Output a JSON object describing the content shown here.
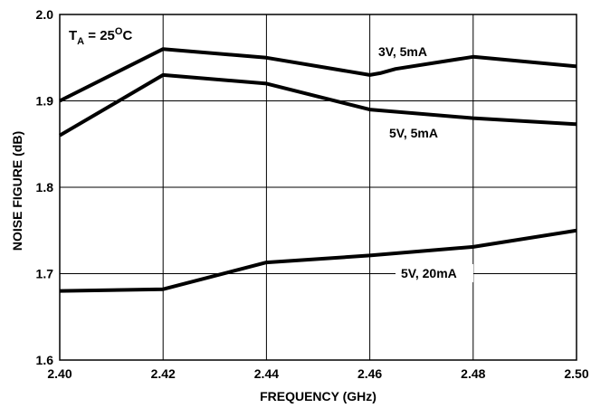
{
  "chart_data": {
    "type": "line",
    "xlabel": "FREQUENCY (GHz)",
    "ylabel": "NOISE FIGURE (dB)",
    "xlim": [
      2.4,
      2.5
    ],
    "ylim": [
      1.6,
      2.0
    ],
    "x_ticks": [
      "2.40",
      "2.42",
      "2.44",
      "2.46",
      "2.48",
      "2.50"
    ],
    "y_ticks": [
      "1.6",
      "1.7",
      "1.8",
      "1.9",
      "2.0"
    ],
    "grid": true,
    "annotation": {
      "main": "T",
      "subscript": "A",
      "rest": " = 25",
      "superscript": "O",
      "unit": "C"
    },
    "series": [
      {
        "name": "3V, 5mA",
        "x": [
          2.4,
          2.42,
          2.44,
          2.46,
          2.462,
          2.465,
          2.48,
          2.5
        ],
        "y": [
          1.9,
          1.96,
          1.95,
          1.93,
          1.932,
          1.937,
          1.951,
          1.94
        ]
      },
      {
        "name": "5V, 5mA",
        "x": [
          2.4,
          2.42,
          2.44,
          2.46,
          2.48,
          2.5
        ],
        "y": [
          1.86,
          1.93,
          1.92,
          1.89,
          1.88,
          1.873
        ]
      },
      {
        "name": "5V, 20mA",
        "x": [
          2.4,
          2.42,
          2.44,
          2.46,
          2.48,
          2.5
        ],
        "y": [
          1.68,
          1.682,
          1.713,
          1.721,
          1.731,
          1.75
        ]
      }
    ]
  }
}
